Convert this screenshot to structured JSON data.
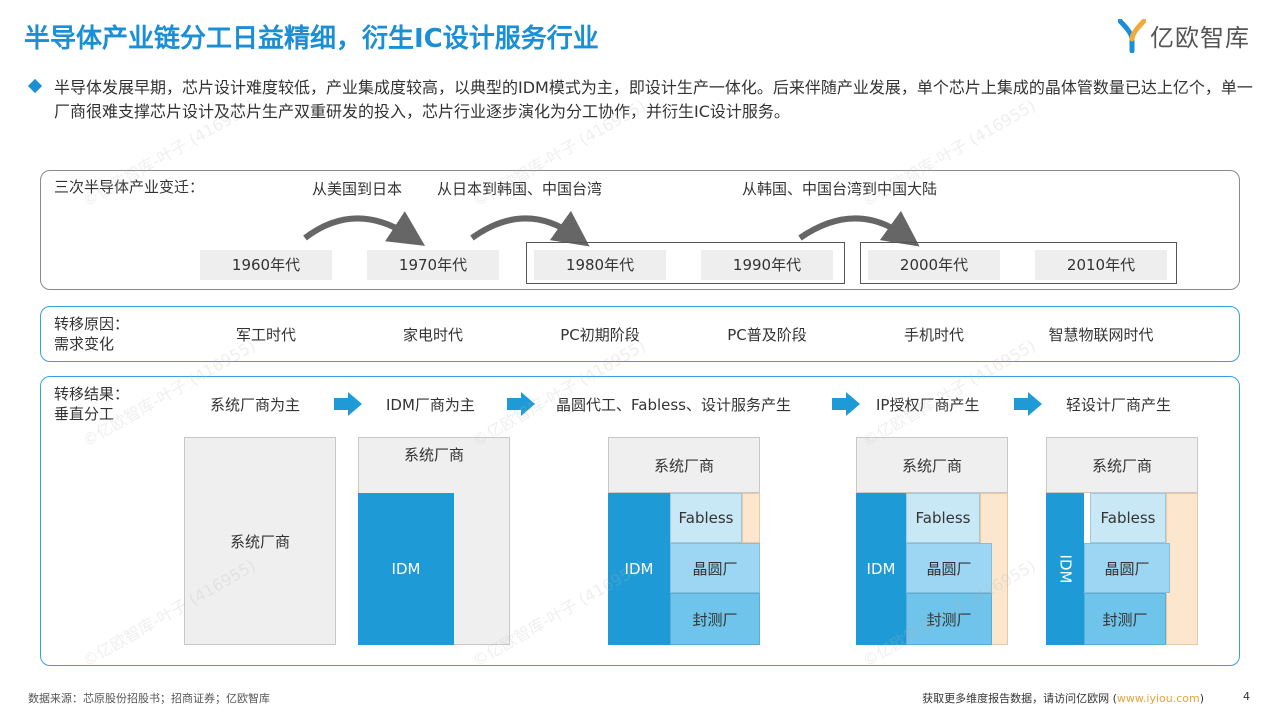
{
  "title": "半导体产业链分工日益精细，衍生IC设计服务行业",
  "logo": {
    "text": "亿欧智库",
    "brand_color": "#1a8fd6"
  },
  "intro": "半导体发展早期，芯片设计难度较低，产业集成度较高，以典型的IDM模式为主，即设计生产一体化。后来伴随产业发展，单个芯片上集成的晶体管数量已达上亿个，单一厂商很难支撑芯片设计及芯片生产双重研发的投入，芯片行业逐步演化为分工协作，并衍生IC设计服务。",
  "shifts": {
    "label": "三次半导体产业变迁：",
    "items": [
      "从美国到日本",
      "从日本到韩国、中国台湾",
      "从韩国、中国台湾到中国大陆"
    ]
  },
  "decades": [
    "1960年代",
    "1970年代",
    "1980年代",
    "1990年代",
    "2000年代",
    "2010年代"
  ],
  "reasons": {
    "label": "转移原因：",
    "label2": "需求变化",
    "items": [
      "军工时代",
      "家电时代",
      "PC初期阶段",
      "PC普及阶段",
      "手机时代",
      "智慧物联网时代"
    ]
  },
  "results": {
    "label": "转移结果：",
    "label2": "垂直分工",
    "items": [
      "系统厂商为主",
      "IDM厂商为主",
      "晶圆代工、Fabless、设计服务产生",
      "IP授权厂商产生",
      "轻设计厂商产生"
    ]
  },
  "blocks": {
    "system": "系统厂商",
    "idm": "IDM",
    "fabless": "Fabless",
    "foundry": "晶圆厂",
    "test": "封测厂"
  },
  "footer": {
    "source": "数据来源：芯原股份招股书；招商证券；亿欧智库",
    "visit": "获取更多维度报告数据，请访问亿欧网 (",
    "url": "www.iyiou.com",
    "close": ")",
    "page": "4"
  },
  "watermark": "©亿欧智库-叶子 (416955)",
  "colors": {
    "accent": "#1a8fd6",
    "idm": "#1e9bd7",
    "arrow": "#666666"
  }
}
